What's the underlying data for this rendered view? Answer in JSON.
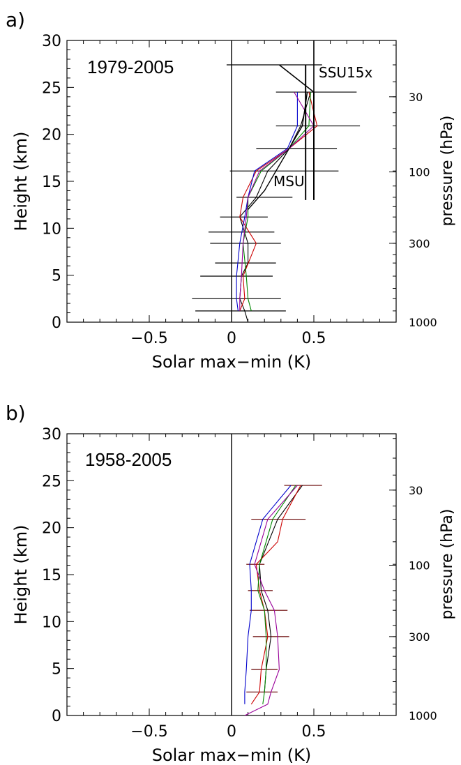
{
  "chart_data": [
    {
      "type": "line",
      "panel_label": "a)",
      "period": "1979-2005",
      "xlabel": "Solar max−min (K)",
      "ylabel": "Height (km)",
      "ylabel_right": "pressure (hPa)",
      "xlim": [
        -1.0,
        1.0
      ],
      "ylim": [
        0,
        30
      ],
      "x_ticks": [
        -0.5,
        0.0,
        0.5
      ],
      "x_tick_labels": [
        "−0.5",
        "0",
        "0.5"
      ],
      "y_ticks": [
        0,
        5,
        10,
        15,
        20,
        25,
        30
      ],
      "y_tick_labels": [
        "0",
        "5",
        "10",
        "15",
        "20",
        "25",
        "30"
      ],
      "pressure_ticks": [
        {
          "label": "30",
          "height": 24.0
        },
        {
          "label": "100",
          "height": 16.0
        },
        {
          "label": "300",
          "height": 8.4
        },
        {
          "label": "1000",
          "height": 0
        }
      ],
      "grid": false,
      "zero_line": true,
      "series": [
        {
          "color": "#000000",
          "points": [
            [
              0.1,
              0.0
            ],
            [
              0.08,
              1.2
            ],
            [
              0.05,
              2.5
            ],
            [
              0.06,
              4.9
            ],
            [
              0.1,
              6.3
            ],
            [
              0.1,
              8.4
            ],
            [
              0.05,
              11.2
            ],
            [
              0.15,
              13.3
            ],
            [
              0.22,
              16.1
            ],
            [
              0.35,
              18.5
            ],
            [
              0.42,
              20.9
            ],
            [
              0.48,
              24.5
            ]
          ]
        },
        {
          "color": "#cc0000",
          "points": [
            [
              0.05,
              1.2
            ],
            [
              0.08,
              2.5
            ],
            [
              0.07,
              4.9
            ],
            [
              0.15,
              8.4
            ],
            [
              0.05,
              11.2
            ],
            [
              0.07,
              13.3
            ],
            [
              0.15,
              16.1
            ],
            [
              0.35,
              18.5
            ],
            [
              0.52,
              20.9
            ],
            [
              0.47,
              24.5
            ]
          ]
        },
        {
          "color": "#008800",
          "points": [
            [
              0.12,
              1.2
            ],
            [
              0.1,
              2.5
            ],
            [
              0.09,
              4.9
            ],
            [
              0.07,
              8.4
            ],
            [
              0.1,
              11.2
            ],
            [
              0.1,
              13.3
            ],
            [
              0.18,
              16.1
            ],
            [
              0.35,
              18.5
            ],
            [
              0.47,
              20.9
            ],
            [
              0.48,
              24.5
            ]
          ]
        },
        {
          "color": "#0000cc",
          "points": [
            [
              0.04,
              1.2
            ],
            [
              0.03,
              2.5
            ],
            [
              0.03,
              4.9
            ],
            [
              0.05,
              8.4
            ],
            [
              0.08,
              11.2
            ],
            [
              0.1,
              13.3
            ],
            [
              0.14,
              16.1
            ],
            [
              0.34,
              18.5
            ],
            [
              0.4,
              20.9
            ],
            [
              0.4,
              24.5
            ]
          ]
        },
        {
          "color": "#990099",
          "points": [
            [
              0.05,
              1.2
            ],
            [
              0.05,
              2.5
            ],
            [
              0.06,
              4.9
            ],
            [
              0.07,
              8.4
            ],
            [
              0.09,
              11.2
            ],
            [
              0.1,
              13.3
            ],
            [
              0.17,
              16.1
            ],
            [
              0.35,
              18.5
            ],
            [
              0.5,
              20.9
            ],
            [
              0.38,
              24.5
            ]
          ]
        }
      ],
      "error_bars": [
        {
          "y": 1.2,
          "lo": -0.22,
          "hi": 0.33,
          "color": "#000000"
        },
        {
          "y": 2.5,
          "lo": -0.24,
          "hi": 0.3,
          "color": "#000000"
        },
        {
          "y": 4.9,
          "lo": -0.19,
          "hi": 0.25,
          "color": "#000000"
        },
        {
          "y": 6.3,
          "lo": -0.1,
          "hi": 0.27,
          "color": "#000000"
        },
        {
          "y": 8.4,
          "lo": -0.13,
          "hi": 0.3,
          "color": "#000000"
        },
        {
          "y": 9.6,
          "lo": -0.14,
          "hi": 0.26,
          "color": "#000000"
        },
        {
          "y": 11.2,
          "lo": -0.07,
          "hi": 0.22,
          "color": "#000000"
        },
        {
          "y": 13.3,
          "lo": 0.03,
          "hi": 0.37,
          "color": "#000000"
        },
        {
          "y": 16.1,
          "lo": -0.01,
          "hi": 0.65,
          "color": "#000000"
        },
        {
          "y": 18.5,
          "lo": 0.15,
          "hi": 0.64,
          "color": "#000000"
        },
        {
          "y": 20.9,
          "lo": 0.27,
          "hi": 0.78,
          "color": "#000000"
        },
        {
          "y": 24.5,
          "lo": 0.27,
          "hi": 0.76,
          "color": "#000000"
        },
        {
          "y": 27.4,
          "lo": -0.03,
          "hi": 0.55,
          "color": "#000000"
        }
      ],
      "ssu_line": {
        "label": "SSU15x",
        "points": [
          [
            0.5,
            30
          ],
          [
            0.5,
            24.5
          ],
          [
            0.29,
            27.4
          ]
        ]
      },
      "msu_line": {
        "label": "MSU",
        "points": [
          [
            0.1,
            12.0
          ],
          [
            0.2,
            14.0
          ],
          [
            0.43,
            20.9
          ],
          [
            0.46,
            24.5
          ]
        ]
      },
      "vertical_bars": [
        {
          "x": 0.45,
          "y0": 13.0,
          "y1": 27.4
        },
        {
          "x": 0.5,
          "y0": 13.0,
          "y1": 24.5
        }
      ]
    },
    {
      "type": "line",
      "panel_label": "b)",
      "period": "1958-2005",
      "xlabel": "Solar max−min (K)",
      "ylabel": "Height (km)",
      "ylabel_right": "pressure (hPa)",
      "xlim": [
        -1.0,
        1.0
      ],
      "ylim": [
        0,
        30
      ],
      "x_ticks": [
        -0.5,
        0.0,
        0.5
      ],
      "x_tick_labels": [
        "−0.5",
        "0",
        "0.5"
      ],
      "y_ticks": [
        0,
        5,
        10,
        15,
        20,
        25,
        30
      ],
      "y_tick_labels": [
        "0",
        "5",
        "10",
        "15",
        "20",
        "25",
        "30"
      ],
      "pressure_ticks": [
        {
          "label": "30",
          "height": 24.0
        },
        {
          "label": "100",
          "height": 16.0
        },
        {
          "label": "300",
          "height": 8.4
        },
        {
          "label": "1000",
          "height": 0
        }
      ],
      "grid": false,
      "zero_line": true,
      "series": [
        {
          "color": "#000000",
          "points": [
            [
              0.2,
              2.5
            ],
            [
              0.21,
              4.9
            ],
            [
              0.24,
              8.4
            ],
            [
              0.22,
              11.2
            ],
            [
              0.18,
              13.3
            ],
            [
              0.17,
              16.1
            ],
            [
              0.28,
              20.9
            ],
            [
              0.43,
              24.5
            ]
          ]
        },
        {
          "color": "#cc0000",
          "points": [
            [
              0.12,
              1.2
            ],
            [
              0.17,
              2.5
            ],
            [
              0.18,
              4.9
            ],
            [
              0.22,
              8.4
            ],
            [
              0.2,
              11.2
            ],
            [
              0.17,
              13.3
            ],
            [
              0.15,
              16.1
            ],
            [
              0.28,
              18.5
            ],
            [
              0.31,
              20.9
            ],
            [
              0.42,
              24.5
            ]
          ]
        },
        {
          "color": "#008800",
          "points": [
            [
              0.19,
              1.2
            ],
            [
              0.2,
              2.5
            ],
            [
              0.21,
              4.9
            ],
            [
              0.21,
              8.4
            ],
            [
              0.2,
              11.2
            ],
            [
              0.16,
              13.3
            ],
            [
              0.17,
              16.1
            ],
            [
              0.25,
              20.9
            ],
            [
              0.39,
              24.5
            ]
          ]
        },
        {
          "color": "#0000cc",
          "points": [
            [
              0.08,
              1.2
            ],
            [
              0.08,
              2.5
            ],
            [
              0.09,
              4.9
            ],
            [
              0.1,
              8.4
            ],
            [
              0.12,
              11.2
            ],
            [
              0.12,
              13.3
            ],
            [
              0.11,
              16.1
            ],
            [
              0.19,
              20.9
            ],
            [
              0.36,
              24.5
            ]
          ]
        },
        {
          "color": "#990099",
          "points": [
            [
              0.08,
              0.0
            ],
            [
              0.22,
              1.2
            ],
            [
              0.24,
              2.5
            ],
            [
              0.29,
              4.9
            ],
            [
              0.28,
              8.4
            ],
            [
              0.26,
              11.2
            ],
            [
              0.2,
              13.3
            ],
            [
              0.14,
              16.1
            ],
            [
              0.22,
              20.9
            ],
            [
              0.4,
              24.5
            ]
          ]
        }
      ],
      "error_bars": [
        {
          "y": 2.5,
          "lo": 0.09,
          "hi": 0.28,
          "color": "#660000"
        },
        {
          "y": 4.9,
          "lo": 0.12,
          "hi": 0.28,
          "color": "#660000"
        },
        {
          "y": 8.4,
          "lo": 0.13,
          "hi": 0.35,
          "color": "#660000"
        },
        {
          "y": 11.2,
          "lo": 0.11,
          "hi": 0.34,
          "color": "#660000"
        },
        {
          "y": 13.3,
          "lo": 0.1,
          "hi": 0.25,
          "color": "#660000"
        },
        {
          "y": 16.1,
          "lo": 0.09,
          "hi": 0.2,
          "color": "#660000"
        },
        {
          "y": 20.9,
          "lo": 0.12,
          "hi": 0.45,
          "color": "#660000"
        },
        {
          "y": 24.5,
          "lo": 0.32,
          "hi": 0.55,
          "color": "#660000"
        }
      ]
    }
  ]
}
